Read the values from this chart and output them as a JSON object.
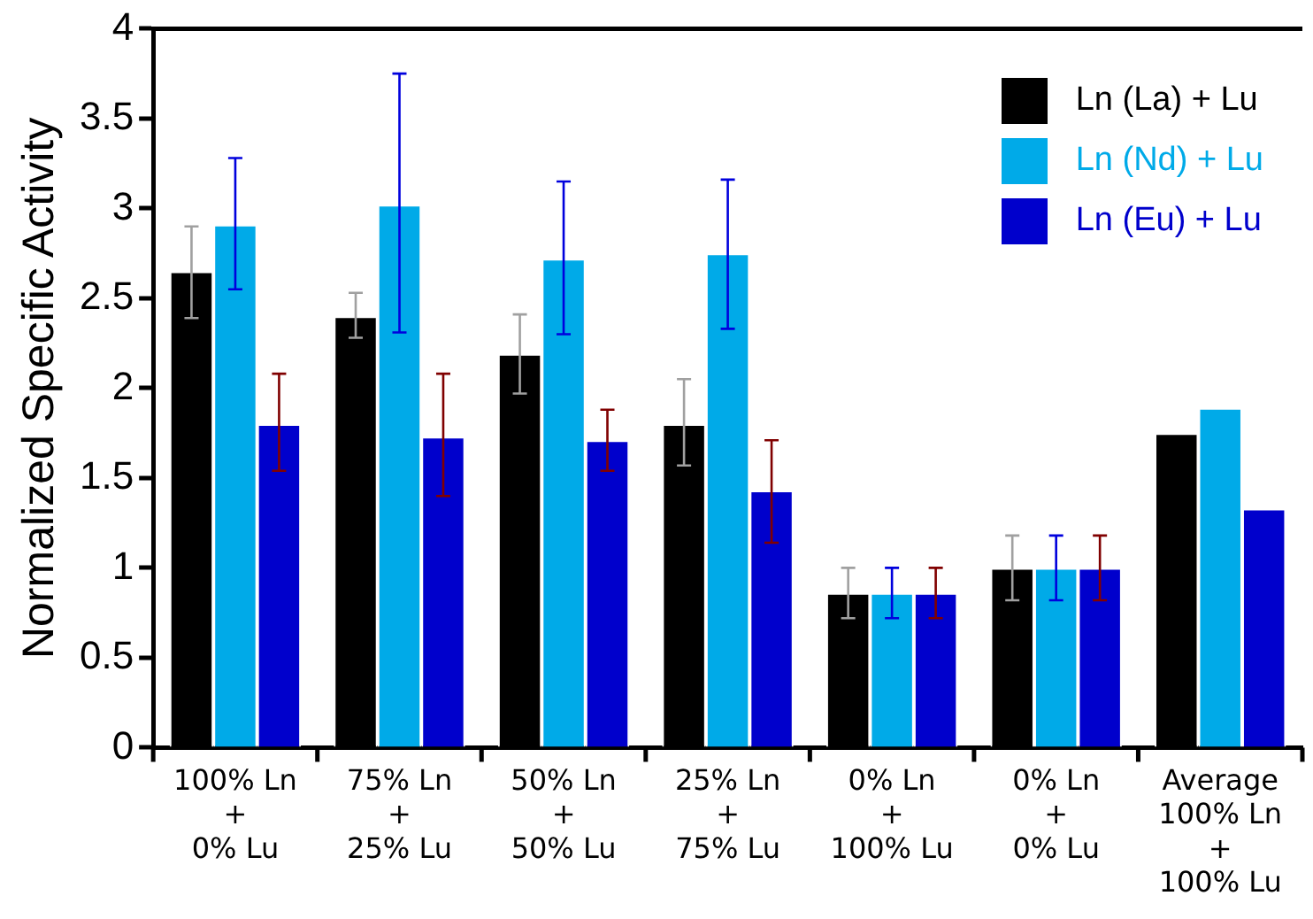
{
  "chart_data": {
    "type": "bar",
    "ylabel": "Normalized Specific Activity",
    "categories": [
      "100% Ln\n+\n0% Lu",
      "75% Ln\n+\n25% Lu",
      "50% Ln\n+\n50% Lu",
      "25% Ln\n+\n75% Lu",
      "0% Ln\n+\n100% Lu",
      "0% Ln\n+\n0% Lu",
      "Average\n100% Ln\n+\n100% Lu"
    ],
    "series": [
      {
        "name": "Ln (La) + Lu",
        "color": "#000000",
        "values": [
          2.65,
          2.4,
          2.19,
          1.8,
          0.86,
          1.0,
          1.75
        ],
        "errors": [
          [
            2.39,
            2.9
          ],
          [
            2.28,
            2.53
          ],
          [
            1.97,
            2.41
          ],
          [
            1.57,
            2.05
          ],
          [
            0.72,
            1.0
          ],
          [
            0.82,
            1.18
          ],
          null
        ]
      },
      {
        "name": "Ln (Nd) + Lu",
        "color": "#00aae8",
        "values": [
          2.91,
          3.02,
          2.72,
          2.75,
          0.86,
          1.0,
          1.89
        ],
        "errors": [
          [
            2.55,
            3.28
          ],
          [
            2.31,
            3.75
          ],
          [
            2.3,
            3.15
          ],
          [
            2.33,
            3.16
          ],
          [
            0.72,
            1.0
          ],
          [
            0.82,
            1.18
          ],
          null
        ]
      },
      {
        "name": "Ln (Eu) + Lu",
        "color": "#0000cc",
        "values": [
          1.8,
          1.73,
          1.71,
          1.43,
          0.86,
          1.0,
          1.33
        ],
        "errors": [
          [
            1.54,
            2.08
          ],
          [
            1.4,
            2.08
          ],
          [
            1.54,
            1.88
          ],
          [
            1.14,
            1.71
          ],
          [
            0.72,
            1.0
          ],
          [
            0.82,
            1.18
          ],
          null
        ]
      }
    ],
    "ylim": [
      0,
      4
    ],
    "yticks": [
      0,
      0.5,
      1,
      1.5,
      2,
      2.5,
      3,
      3.5,
      4
    ],
    "grid": false,
    "legend": "top right"
  }
}
